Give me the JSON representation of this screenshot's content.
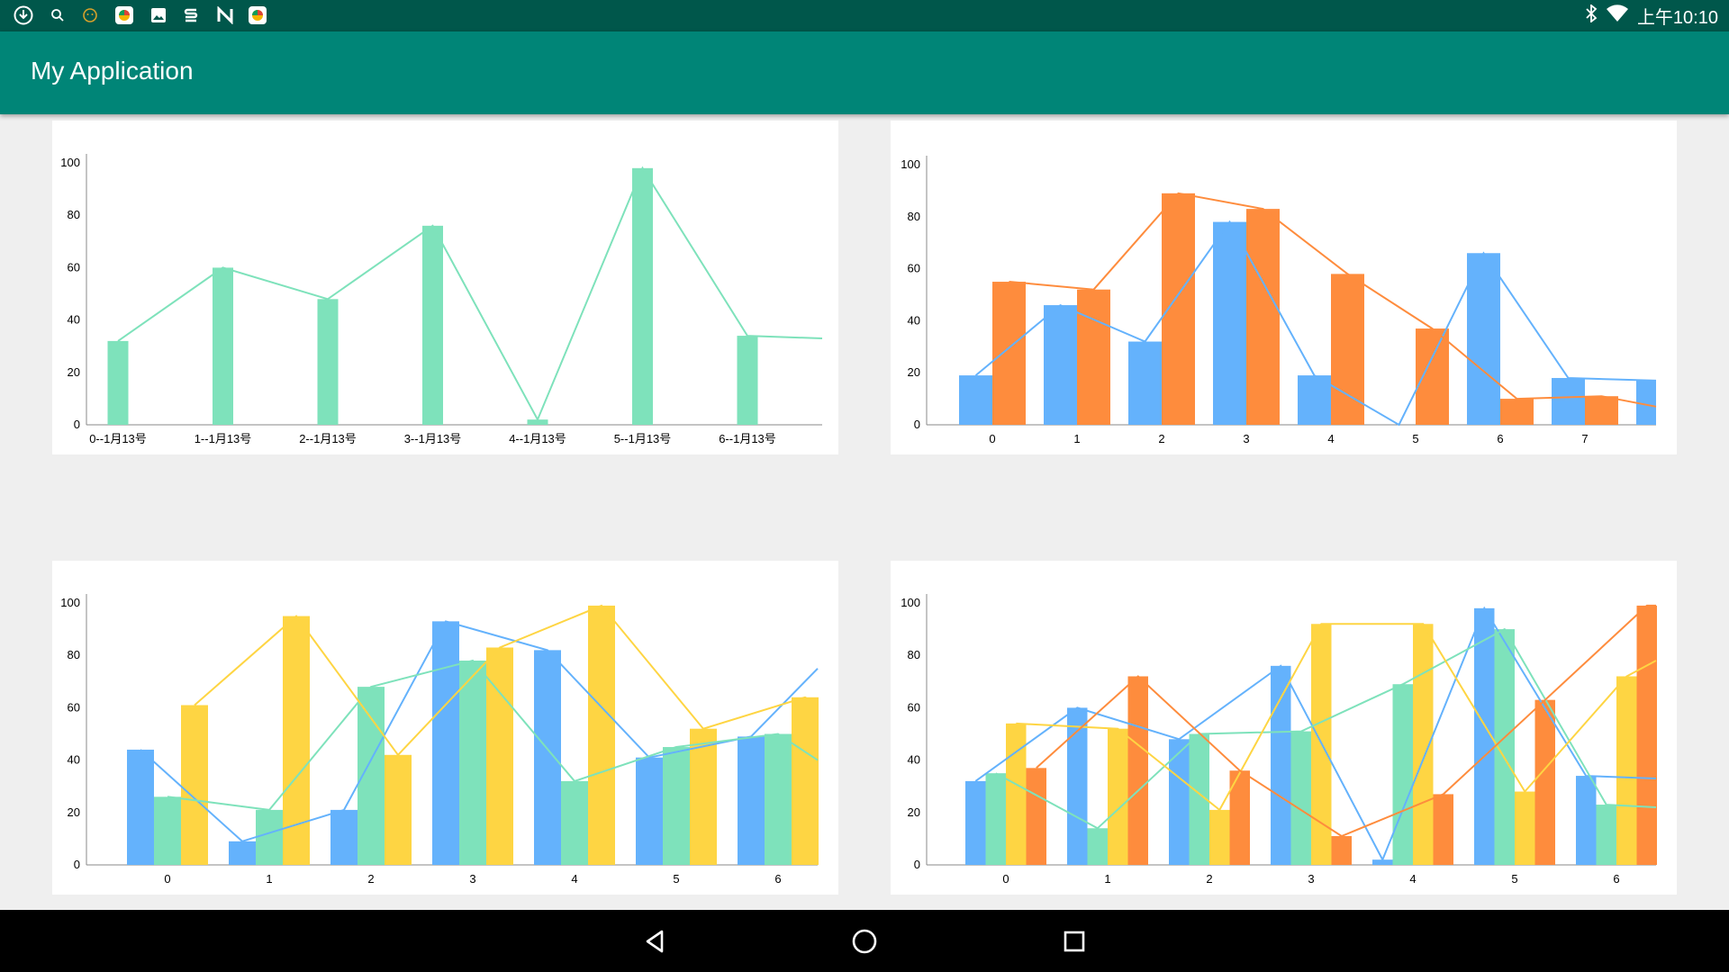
{
  "status_bar": {
    "time": "上午10:10",
    "left_icons": [
      "download-icon",
      "search-icon",
      "face-icon",
      "app-icon",
      "image-icon",
      "s-icon",
      "n-icon",
      "app-icon"
    ],
    "right_icons": [
      "bluetooth-icon",
      "wifi-icon"
    ]
  },
  "app_bar": {
    "title": "My Application",
    "color": "#008577"
  },
  "colors": {
    "blue": "#64b2fc",
    "green": "#7ee2bb",
    "yellow": "#fed543",
    "orange": "#fe8c3d"
  },
  "chart_data": [
    {
      "type": "bar",
      "categories": [
        "0--1月13号",
        "1--1月13号",
        "2--1月13号",
        "3--1月13号",
        "4--1月13号",
        "5--1月13号",
        "6--1月13号"
      ],
      "series": [
        {
          "values": [
            32,
            60,
            48,
            76,
            2,
            98,
            34
          ],
          "color": "#7ee2bb",
          "line_end": 33
        }
      ],
      "ylim": [
        0,
        100
      ],
      "yticks": [
        0,
        20,
        40,
        60,
        80,
        100
      ]
    },
    {
      "type": "bar",
      "categories": [
        "0",
        "1",
        "2",
        "3",
        "4",
        "5",
        "6",
        "7"
      ],
      "series": [
        {
          "values": [
            19,
            46,
            32,
            78,
            19,
            0,
            66,
            18
          ],
          "color": "#64b2fc",
          "partial_next": 17
        },
        {
          "values": [
            55,
            52,
            89,
            83,
            58,
            37,
            10,
            11
          ],
          "color": "#fe8c3d",
          "line_end": 7
        }
      ],
      "ylim": [
        0,
        100
      ],
      "yticks": [
        0,
        20,
        40,
        60,
        80,
        100
      ]
    },
    {
      "type": "bar",
      "categories": [
        "0",
        "1",
        "2",
        "3",
        "4",
        "5",
        "6"
      ],
      "series": [
        {
          "values": [
            44,
            9,
            21,
            93,
            82,
            41,
            49
          ],
          "color": "#64b2fc",
          "line_end": 75
        },
        {
          "values": [
            26,
            21,
            68,
            78,
            32,
            45,
            50
          ],
          "color": "#7ee2bb",
          "line_end": 40
        },
        {
          "values": [
            61,
            95,
            42,
            83,
            99,
            52,
            64
          ],
          "color": "#fed543",
          "line_end": 61
        }
      ],
      "ylim": [
        0,
        100
      ],
      "yticks": [
        0,
        20,
        40,
        60,
        80,
        100
      ]
    },
    {
      "type": "bar",
      "categories": [
        "0",
        "1",
        "2",
        "3",
        "4",
        "5",
        "6"
      ],
      "series": [
        {
          "values": [
            32,
            60,
            48,
            76,
            2,
            98,
            34
          ],
          "color": "#64b2fc",
          "line_end": 33
        },
        {
          "values": [
            35,
            14,
            50,
            51,
            69,
            90,
            23
          ],
          "color": "#7ee2bb",
          "line_end": 22
        },
        {
          "values": [
            54,
            52,
            21,
            92,
            92,
            28,
            72
          ],
          "color": "#fed543",
          "line_end": 78
        },
        {
          "values": [
            37,
            72,
            36,
            11,
            27,
            63,
            99
          ],
          "color": "#fe8c3d",
          "line_end": 99
        }
      ],
      "ylim": [
        0,
        100
      ],
      "yticks": [
        0,
        20,
        40,
        60,
        80,
        100
      ]
    }
  ],
  "nav_bar": {
    "icons": [
      "back-icon",
      "home-icon",
      "recents-icon"
    ]
  }
}
